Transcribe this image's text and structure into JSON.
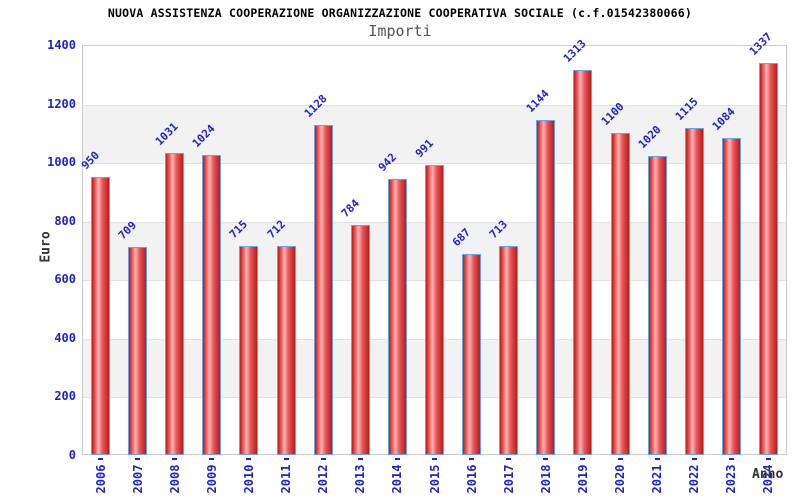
{
  "title": "NUOVA ASSISTENZA COOPERAZIONE ORGANIZZAZIONE COOPERATIVA SOCIALE (c.f.01542380066)",
  "subtitle": "Importi",
  "chart_data": {
    "type": "bar",
    "title": "NUOVA ASSISTENZA COOPERAZIONE ORGANIZZAZIONE COOPERATIVA SOCIALE (c.f.01542380066)",
    "subtitle": "Importi",
    "xlabel": "Anno",
    "ylabel": "Euro",
    "categories": [
      "2006",
      "2007",
      "2008",
      "2009",
      "2010",
      "2011",
      "2012",
      "2013",
      "2014",
      "2015",
      "2016",
      "2017",
      "2018",
      "2019",
      "2020",
      "2021",
      "2022",
      "2023",
      "2024"
    ],
    "values": [
      950,
      709,
      1031,
      1024,
      715,
      712,
      1128,
      784,
      942,
      991,
      687,
      713,
      1144,
      1313,
      1100,
      1020,
      1115,
      1084,
      1337
    ],
    "ylim": [
      0,
      1400
    ],
    "yticks": [
      0,
      200,
      400,
      600,
      800,
      1000,
      1200,
      1400
    ],
    "grid": "alternating horizontal bands every 200 units",
    "legend": "none",
    "bar_value_labels": "shown, rotated 45deg, blue",
    "x_tick_labels": "rotated 90deg, blue",
    "colors": {
      "axis_label_blue": "#2222cc",
      "bar_border": "#64a4ea",
      "bar_dark": "#bb1c1c",
      "bar_mid": "#e85555",
      "bar_light": "#fcb4b4",
      "band_gray": "#f2f2f2",
      "grid_line": "#e2e2e2",
      "plot_border": "#cccccc",
      "title_black": "#000000",
      "subtitle_gray": "#555555",
      "axis_title_dark": "#333333"
    }
  }
}
